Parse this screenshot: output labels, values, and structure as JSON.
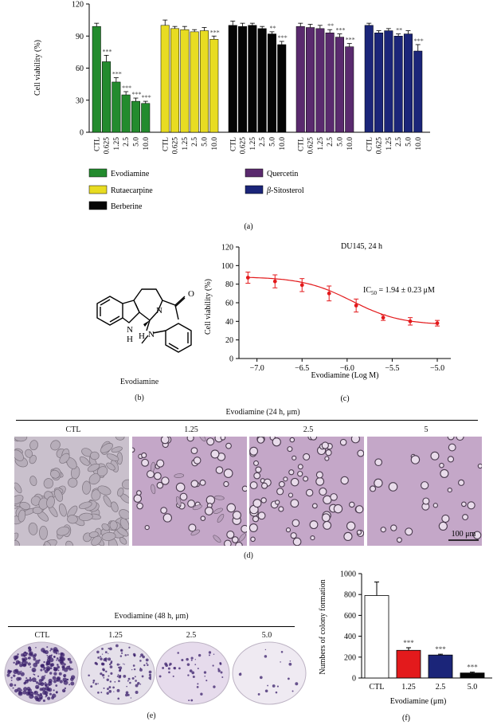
{
  "panel_a": {
    "label": "(a)",
    "ylabel": "Cell viability (%)",
    "yticks": [
      "0",
      "30",
      "60",
      "90",
      "120"
    ],
    "groups": [
      {
        "name": "Evodiamine",
        "color": "#238b2e"
      },
      {
        "name": "Rutaecarpine",
        "color": "#e8dc22"
      },
      {
        "name": "Berberine",
        "color": "#050505"
      },
      {
        "name": "Quercetin",
        "color": "#5a2a6e"
      },
      {
        "name": "β-Sitosterol",
        "color": "#1b2579"
      }
    ],
    "doses": [
      "CTL",
      "0.625",
      "1.25",
      "2.5",
      "5.0",
      "10.0"
    ],
    "legend": {
      "evodiamine": "Evodiamine",
      "rutaecarpine": "Rutaecarpine",
      "berberine": "Berberine",
      "quercetin": "Quercetin",
      "sitosterol_prefix": "β",
      "sitosterol_suffix": "-Sitosterol"
    }
  },
  "chart_data": [
    {
      "type": "bar",
      "ylabel": "Cell viability (%)",
      "ylim": [
        0,
        120
      ],
      "categories": [
        "CTL",
        "0.625",
        "1.25",
        "2.5",
        "5.0",
        "10.0"
      ],
      "series": [
        {
          "name": "Evodiamine",
          "values": [
            99,
            66,
            47,
            35,
            29,
            27
          ],
          "errors": [
            3,
            6,
            4,
            3,
            3,
            2
          ],
          "significance": [
            "",
            "***",
            "***",
            "***",
            "***",
            "***"
          ]
        },
        {
          "name": "Rutaecarpine",
          "values": [
            100,
            97,
            96,
            94,
            95,
            87
          ],
          "errors": [
            5,
            2,
            3,
            2,
            3,
            3
          ],
          "significance": [
            "",
            "",
            "",
            "",
            "",
            "***"
          ]
        },
        {
          "name": "Berberine",
          "values": [
            100,
            99,
            100,
            97,
            92,
            82
          ],
          "errors": [
            4,
            3,
            2,
            2,
            2,
            3
          ],
          "significance": [
            "",
            "",
            "",
            "",
            "**",
            "***"
          ]
        },
        {
          "name": "Quercetin",
          "values": [
            99,
            98,
            97,
            93,
            89,
            80
          ],
          "errors": [
            3,
            3,
            3,
            3,
            3,
            3
          ],
          "significance": [
            "",
            "",
            "",
            "**",
            "***",
            "***"
          ]
        },
        {
          "name": "β-Sitosterol",
          "values": [
            100,
            93,
            95,
            90,
            92,
            76
          ],
          "errors": [
            2,
            2,
            2,
            2,
            3,
            6
          ],
          "significance": [
            "",
            "",
            "",
            "**",
            "",
            "***"
          ]
        }
      ]
    },
    {
      "type": "line",
      "title": "DU145, 24 h",
      "xlabel": "Evodiamine (Log M)",
      "ylabel": "Cell viability (%)",
      "xlim": [
        -7.2,
        -4.85
      ],
      "ylim": [
        0,
        120
      ],
      "x": [
        -7.1,
        -6.8,
        -6.5,
        -6.2,
        -5.9,
        -5.6,
        -5.3,
        -5.0
      ],
      "series": [
        {
          "values": [
            87,
            83,
            79,
            70,
            57,
            44,
            40,
            38
          ],
          "errors": [
            6,
            7,
            7,
            8,
            7,
            3,
            4,
            3
          ]
        }
      ],
      "annotation": "IC50 = 1.94 ± 0.23 μM"
    },
    {
      "type": "bar",
      "xlabel": "Evodiamine (μm)",
      "ylabel": "Numbers of colony formation",
      "ylim": [
        0,
        1000
      ],
      "categories": [
        "CTL",
        "1.25",
        "2.5",
        "5.0"
      ],
      "values": [
        790,
        265,
        220,
        48
      ],
      "errors": [
        130,
        25,
        8,
        8
      ],
      "significance": [
        "",
        "***",
        "***",
        "***"
      ]
    }
  ],
  "panel_b": {
    "label": "(b)",
    "caption": "Evodiamine",
    "atoms": {
      "o": "O",
      "n1": "N",
      "nh": "N",
      "h_nh": "H",
      "h": "H",
      "n2": "N"
    }
  },
  "panel_c": {
    "label": "(c)",
    "title": "DU145, 24 h",
    "ylabel": "Cell viability (%)",
    "xlabel": "Evodiamine (Log M)",
    "yticks": [
      "0",
      "20",
      "40",
      "60",
      "80",
      "100",
      "120"
    ],
    "xticks": [
      "−7.0",
      "−6.5",
      "−6.0",
      "−5.5",
      "−5.0"
    ],
    "ic50_prefix": "IC",
    "ic50_sub": "50",
    "ic50_suffix": " = 1.94 ± 0.23 μM"
  },
  "panel_d": {
    "label": "(d)",
    "header": "Evodiamine (24 h, μm)",
    "images": [
      "CTL",
      "1.25",
      "2.5",
      "5"
    ],
    "scalebar": "100 μm"
  },
  "panel_e": {
    "label": "(e)",
    "header": "Evodiamine (48 h, μm)",
    "dishes": [
      "CTL",
      "1.25",
      "2.5",
      "5.0"
    ]
  },
  "panel_f": {
    "label": "(f)",
    "ylabel": "Numbers of colony formation",
    "xlabel": "Evodiamine (μm)",
    "yticks": [
      "0",
      "200",
      "400",
      "600",
      "800",
      "1000"
    ],
    "categories": [
      "CTL",
      "1.25",
      "2.5",
      "5.0"
    ],
    "colors": [
      "#ffffff",
      "#e31a1c",
      "#1b2579",
      "#050505"
    ]
  }
}
